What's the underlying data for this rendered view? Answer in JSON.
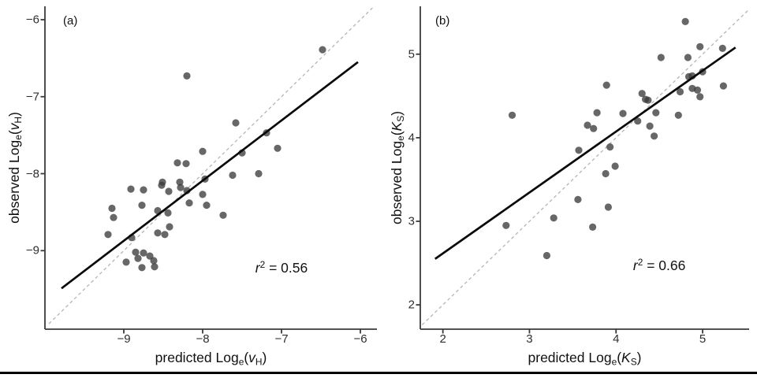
{
  "figure": {
    "background": "#ffffff",
    "bottom_rule_color": "#000000"
  },
  "styles": {
    "point_color": "#3c3c3c",
    "point_opacity": 0.78,
    "point_radius": 4.6,
    "fit_line_color": "#0a0a0a",
    "fit_line_width": 2.7,
    "identity_line_color": "#b5b5b5",
    "identity_line_width": 1.3,
    "identity_dash": "4 3.5",
    "axis_color": "#3a3a3a",
    "axis_width": 1.8,
    "tick_length": 5.5
  },
  "chart_data": [
    {
      "type": "scatter",
      "panel_label": "(a)",
      "xlabel_parts": [
        {
          "text": "predicted Log",
          "style": "normal"
        },
        {
          "text": "e",
          "style": "sub"
        },
        {
          "text": "(",
          "style": "normal"
        },
        {
          "text": "v",
          "style": "italic"
        },
        {
          "text": "H",
          "style": "sub"
        },
        {
          "text": ")",
          "style": "normal"
        }
      ],
      "ylabel_parts": [
        {
          "text": "observed Log",
          "style": "normal"
        },
        {
          "text": "e",
          "style": "sub"
        },
        {
          "text": "(",
          "style": "normal"
        },
        {
          "text": "v",
          "style": "italic"
        },
        {
          "text": "H",
          "style": "sub"
        },
        {
          "text": ")",
          "style": "normal"
        }
      ],
      "annotation": {
        "parts": [
          {
            "text": "r",
            "style": "italic"
          },
          {
            "text": "2",
            "style": "sup"
          },
          {
            "text": " = 0.56",
            "style": "normal"
          }
        ],
        "x": -7.0,
        "y": -9.22
      },
      "xlim": [
        -10.0,
        -5.79
      ],
      "ylim": [
        -10.02,
        -5.826
      ],
      "xticks": [
        -9,
        -8,
        -7,
        -6
      ],
      "yticks": [
        -6,
        -7,
        -8,
        -9
      ],
      "grid": false,
      "identity_line": {
        "x1": -9.95,
        "y1": -9.95,
        "x2": -5.84,
        "y2": -5.84
      },
      "fit_line": {
        "x1": -9.79,
        "y1": -9.49,
        "x2": -6.03,
        "y2": -6.55
      },
      "points": [
        [
          -6.48,
          -6.39
        ],
        [
          -8.2,
          -6.73
        ],
        [
          -7.58,
          -7.34
        ],
        [
          -7.19,
          -7.47
        ],
        [
          -7.05,
          -7.67
        ],
        [
          -7.5,
          -7.73
        ],
        [
          -8.0,
          -7.71
        ],
        [
          -8.32,
          -7.86
        ],
        [
          -8.21,
          -7.87
        ],
        [
          -7.62,
          -8.02
        ],
        [
          -7.29,
          -8.0
        ],
        [
          -7.97,
          -8.07
        ],
        [
          -8.51,
          -8.11
        ],
        [
          -8.52,
          -8.15
        ],
        [
          -8.29,
          -8.11
        ],
        [
          -8.28,
          -8.18
        ],
        [
          -8.91,
          -8.2
        ],
        [
          -8.75,
          -8.21
        ],
        [
          -8.2,
          -8.22
        ],
        [
          -8.43,
          -8.23
        ],
        [
          -8.0,
          -8.27
        ],
        [
          -8.17,
          -8.38
        ],
        [
          -8.77,
          -8.41
        ],
        [
          -9.15,
          -8.45
        ],
        [
          -7.95,
          -8.41
        ],
        [
          -7.74,
          -8.54
        ],
        [
          -9.13,
          -8.57
        ],
        [
          -8.57,
          -8.48
        ],
        [
          -8.44,
          -8.51
        ],
        [
          -8.42,
          -8.69
        ],
        [
          -8.57,
          -8.77
        ],
        [
          -8.48,
          -8.79
        ],
        [
          -9.2,
          -8.79
        ],
        [
          -8.9,
          -8.83
        ],
        [
          -8.85,
          -9.02
        ],
        [
          -8.75,
          -9.03
        ],
        [
          -8.82,
          -9.1
        ],
        [
          -8.67,
          -9.07
        ],
        [
          -8.97,
          -9.15
        ],
        [
          -8.62,
          -9.13
        ],
        [
          -8.77,
          -9.22
        ],
        [
          -8.61,
          -9.21
        ]
      ]
    },
    {
      "type": "scatter",
      "panel_label": "(b)",
      "xlabel_parts": [
        {
          "text": "predicted Log",
          "style": "normal"
        },
        {
          "text": "e",
          "style": "sub"
        },
        {
          "text": "(",
          "style": "normal"
        },
        {
          "text": "K",
          "style": "italic"
        },
        {
          "text": "S",
          "style": "sub"
        },
        {
          "text": ")",
          "style": "normal"
        }
      ],
      "ylabel_parts": [
        {
          "text": "observed Log",
          "style": "normal"
        },
        {
          "text": "e",
          "style": "sub"
        },
        {
          "text": "(",
          "style": "normal"
        },
        {
          "text": "K",
          "style": "italic"
        },
        {
          "text": "S",
          "style": "sub"
        },
        {
          "text": ")",
          "style": "normal"
        }
      ],
      "annotation": {
        "parts": [
          {
            "text": "r",
            "style": "italic"
          },
          {
            "text": "2",
            "style": "sup"
          },
          {
            "text": " = 0.66",
            "style": "normal"
          }
        ],
        "x": 4.5,
        "y": 2.47
      },
      "xlim": [
        1.739,
        5.537
      ],
      "ylim": [
        1.709,
        5.573
      ],
      "xticks": [
        2,
        3,
        4,
        5
      ],
      "yticks": [
        2,
        3,
        4,
        5
      ],
      "grid": false,
      "identity_line": {
        "x1": 1.76,
        "y1": 1.76,
        "x2": 5.53,
        "y2": 5.53
      },
      "fit_line": {
        "x1": 1.91,
        "y1": 2.55,
        "x2": 5.38,
        "y2": 5.08
      },
      "points": [
        [
          2.8,
          4.27
        ],
        [
          3.57,
          3.85
        ],
        [
          4.8,
          5.39
        ],
        [
          4.97,
          5.09
        ],
        [
          5.23,
          5.07
        ],
        [
          4.52,
          4.96
        ],
        [
          4.83,
          4.96
        ],
        [
          4.84,
          4.73
        ],
        [
          5.0,
          4.79
        ],
        [
          4.88,
          4.74
        ],
        [
          3.89,
          4.63
        ],
        [
          5.24,
          4.62
        ],
        [
          4.74,
          4.55
        ],
        [
          4.88,
          4.59
        ],
        [
          4.94,
          4.57
        ],
        [
          4.97,
          4.49
        ],
        [
          4.3,
          4.53
        ],
        [
          4.34,
          4.46
        ],
        [
          4.37,
          4.45
        ],
        [
          4.08,
          4.29
        ],
        [
          4.46,
          4.3
        ],
        [
          4.72,
          4.27
        ],
        [
          3.78,
          4.3
        ],
        [
          3.67,
          4.15
        ],
        [
          3.74,
          4.11
        ],
        [
          4.25,
          4.2
        ],
        [
          4.39,
          4.14
        ],
        [
          4.44,
          4.02
        ],
        [
          3.93,
          3.89
        ],
        [
          3.99,
          3.66
        ],
        [
          3.88,
          3.57
        ],
        [
          3.91,
          3.17
        ],
        [
          3.73,
          2.93
        ],
        [
          2.73,
          2.95
        ],
        [
          3.56,
          3.26
        ],
        [
          3.28,
          3.04
        ],
        [
          3.2,
          2.59
        ]
      ]
    }
  ]
}
